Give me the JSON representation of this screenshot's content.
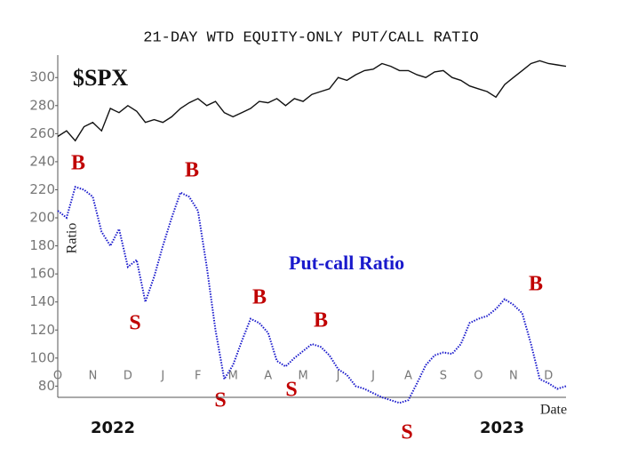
{
  "chart_data": {
    "type": "line",
    "title": "21-DAY WTD EQUITY-ONLY PUT/CALL RATIO",
    "y_label": "Ratio",
    "x_label": "Date",
    "year_labels": [
      "2022",
      "2023"
    ],
    "signals": [
      "B",
      "S",
      "B",
      "S",
      "B",
      "S",
      "B",
      "S",
      "B"
    ],
    "categories": [
      "O",
      null,
      null,
      null,
      "N",
      null,
      null,
      null,
      "D",
      null,
      null,
      null,
      "J",
      null,
      null,
      null,
      "F",
      null,
      null,
      null,
      "M",
      null,
      null,
      null,
      "A",
      null,
      null,
      null,
      "M",
      null,
      null,
      null,
      "J",
      null,
      null,
      null,
      "J",
      null,
      null,
      null,
      "A",
      null,
      null,
      null,
      "S",
      null,
      null,
      null,
      "O",
      null,
      null,
      null,
      "N",
      null,
      null,
      null,
      "D",
      null,
      null
    ],
    "series": [
      {
        "name": "$SPX",
        "color": "#111111",
        "line_style": "solid",
        "values": [
          258,
          262,
          255,
          265,
          268,
          262,
          278,
          275,
          280,
          276,
          268,
          270,
          268,
          272,
          278,
          282,
          285,
          280,
          283,
          275,
          272,
          275,
          278,
          283,
          282,
          285,
          280,
          285,
          283,
          288,
          290,
          292,
          300,
          298,
          302,
          305,
          306,
          310,
          308,
          305,
          305,
          302,
          300,
          304,
          305,
          300,
          298,
          294,
          292,
          290,
          286,
          295,
          300,
          305,
          310,
          312,
          310,
          309,
          308
        ]
      },
      {
        "name": "Put-call Ratio",
        "color": "#1a1acc",
        "line_style": "dotted",
        "values": [
          205,
          200,
          222,
          220,
          215,
          190,
          180,
          192,
          165,
          170,
          140,
          158,
          180,
          200,
          218,
          215,
          205,
          165,
          120,
          85,
          95,
          112,
          128,
          125,
          118,
          98,
          94,
          100,
          105,
          110,
          108,
          102,
          92,
          88,
          80,
          78,
          75,
          72,
          70,
          68,
          70,
          82,
          95,
          102,
          104,
          103,
          110,
          125,
          128,
          130,
          135,
          142,
          138,
          132,
          110,
          85,
          82,
          78,
          80
        ]
      }
    ],
    "ylim": [
      72,
      316
    ],
    "yticks": [
      80,
      100,
      120,
      140,
      160,
      180,
      200,
      220,
      240,
      260,
      280,
      300
    ],
    "grid": false
  }
}
